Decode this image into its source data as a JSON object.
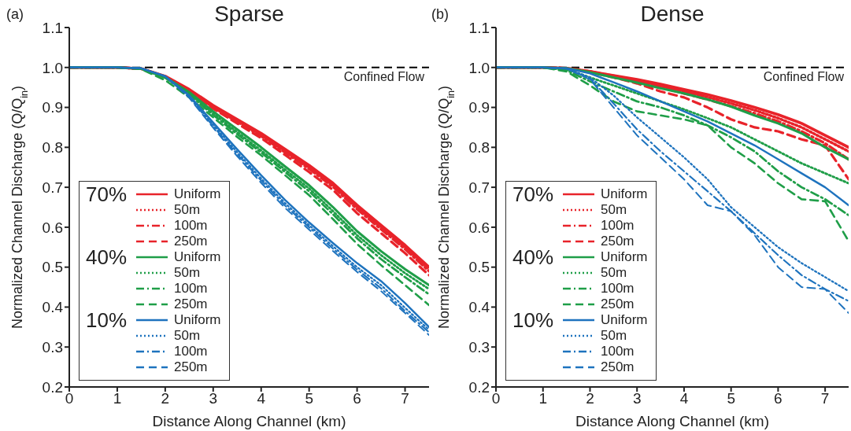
{
  "chart_data": [
    {
      "type": "line",
      "title": "Sparse",
      "xlabel": "Distance Along Channel (km)",
      "ylabel": "Normalized Channel Discharge (Q/Q$_{in}$)",
      "annotations": [
        "(a)",
        "70%",
        "40%",
        "10%"
      ],
      "x": [
        0,
        1,
        1.5,
        2,
        2.5,
        3,
        3.5,
        4,
        4.5,
        5,
        5.5,
        6,
        6.5,
        7,
        7.5
      ],
      "xlim": [
        0,
        7.5
      ],
      "xticks": [
        0,
        1,
        2,
        3,
        4,
        5,
        6,
        7
      ],
      "ylim": [
        0.2,
        1.1
      ],
      "yticks": [
        0.2,
        0.3,
        0.4,
        0.5,
        0.6,
        0.7,
        0.8,
        0.9,
        {
          "value": 1,
          "label": "1.0"
        },
        1.1
      ],
      "ref_lines": [
        {
          "axis": "y",
          "value": 1,
          "label": "Confined Flow",
          "color": "#000000",
          "line_style": "dashed"
        }
      ],
      "legend": "bottom left",
      "marker": "none",
      "series": [
        {
          "name": "Uniform",
          "color": "#e8232a",
          "line_style": "solid",
          "values": [
            1,
            1,
            0.997,
            0.978,
            0.945,
            0.905,
            0.87,
            0.835,
            0.795,
            0.755,
            0.71,
            0.655,
            0.605,
            0.555,
            0.5
          ]
        },
        {
          "name": "50m",
          "color": "#e8232a",
          "line_style": "dotted",
          "values": [
            1,
            1,
            0.997,
            0.977,
            0.943,
            0.902,
            0.866,
            0.831,
            0.79,
            0.75,
            0.705,
            0.65,
            0.6,
            0.55,
            0.495
          ]
        },
        {
          "name": "100m",
          "color": "#e8232a",
          "line_style": "dashdot",
          "values": [
            1,
            1,
            0.997,
            0.977,
            0.942,
            0.9,
            0.864,
            0.828,
            0.787,
            0.746,
            0.701,
            0.645,
            0.595,
            0.545,
            0.49
          ]
        },
        {
          "name": "250m",
          "color": "#e8232a",
          "line_style": "dashed",
          "values": [
            1,
            1,
            0.997,
            0.976,
            0.94,
            0.897,
            0.86,
            0.823,
            0.781,
            0.738,
            0.693,
            0.635,
            0.585,
            0.535,
            0.48
          ]
        },
        {
          "name": "Uniform",
          "color": "#1f9e48",
          "line_style": "solid",
          "values": [
            1,
            1,
            0.997,
            0.976,
            0.938,
            0.89,
            0.845,
            0.8,
            0.752,
            0.705,
            0.65,
            0.59,
            0.54,
            0.495,
            0.455
          ]
        },
        {
          "name": "50m",
          "color": "#1f9e48",
          "line_style": "dotted",
          "values": [
            1,
            1,
            0.997,
            0.975,
            0.935,
            0.885,
            0.838,
            0.792,
            0.744,
            0.697,
            0.64,
            0.58,
            0.53,
            0.485,
            0.445
          ]
        },
        {
          "name": "100m",
          "color": "#1f9e48",
          "line_style": "dashdot",
          "values": [
            1,
            1,
            0.997,
            0.974,
            0.932,
            0.881,
            0.833,
            0.787,
            0.738,
            0.69,
            0.632,
            0.572,
            0.52,
            0.475,
            0.432
          ]
        },
        {
          "name": "250m",
          "color": "#1f9e48",
          "line_style": "dashed",
          "values": [
            1,
            1,
            0.996,
            0.968,
            0.925,
            0.875,
            0.826,
            0.78,
            0.73,
            0.68,
            0.62,
            0.558,
            0.505,
            0.455,
            0.405
          ]
        },
        {
          "name": "Uniform",
          "color": "#1e73be",
          "line_style": "solid",
          "values": [
            1,
            1,
            0.998,
            0.978,
            0.93,
            0.862,
            0.795,
            0.73,
            0.668,
            0.612,
            0.56,
            0.51,
            0.465,
            0.41,
            0.35
          ]
        },
        {
          "name": "50m",
          "color": "#1e73be",
          "line_style": "dotted",
          "values": [
            1,
            1,
            0.998,
            0.978,
            0.928,
            0.857,
            0.788,
            0.722,
            0.66,
            0.605,
            0.552,
            0.5,
            0.455,
            0.398,
            0.343
          ]
        },
        {
          "name": "100m",
          "color": "#1e73be",
          "line_style": "dashdot",
          "values": [
            1,
            1,
            0.998,
            0.978,
            0.926,
            0.853,
            0.783,
            0.717,
            0.654,
            0.6,
            0.546,
            0.494,
            0.447,
            0.39,
            0.337
          ]
        },
        {
          "name": "250m",
          "color": "#1e73be",
          "line_style": "dashed",
          "values": [
            1,
            1,
            0.998,
            0.978,
            0.924,
            0.849,
            0.778,
            0.711,
            0.648,
            0.594,
            0.54,
            0.488,
            0.44,
            0.385,
            0.33
          ]
        }
      ]
    },
    {
      "type": "line",
      "title": "Dense",
      "xlabel": "Distance Along Channel (km)",
      "ylabel": "Normalized Channel Discharge (Q/Q$_{in}$)",
      "annotations": [
        "(b)",
        "70%",
        "40%",
        "10%"
      ],
      "x": [
        0,
        1,
        1.5,
        2,
        2.5,
        3,
        3.5,
        4,
        4.5,
        5,
        5.5,
        6,
        6.5,
        7,
        7.5
      ],
      "xlim": [
        0,
        7.5
      ],
      "xticks": [
        0,
        1,
        2,
        3,
        4,
        5,
        6,
        7
      ],
      "ylim": [
        0.2,
        1.1
      ],
      "yticks": [
        0.2,
        0.3,
        0.4,
        0.5,
        0.6,
        0.7,
        0.8,
        0.9,
        {
          "value": 1,
          "label": "1.0"
        },
        1.1
      ],
      "ref_lines": [
        {
          "axis": "y",
          "value": 1,
          "label": "Confined Flow",
          "color": "#000000",
          "line_style": "dashed"
        }
      ],
      "legend": "bottom left",
      "marker": "none",
      "series": [
        {
          "name": "Uniform",
          "color": "#e8232a",
          "line_style": "solid",
          "values": [
            1,
            1,
            0.998,
            0.99,
            0.98,
            0.97,
            0.958,
            0.945,
            0.932,
            0.917,
            0.9,
            0.882,
            0.86,
            0.83,
            0.8
          ]
        },
        {
          "name": "50m",
          "color": "#e8232a",
          "line_style": "dotted",
          "values": [
            1,
            1,
            0.998,
            0.99,
            0.979,
            0.967,
            0.954,
            0.94,
            0.926,
            0.91,
            0.893,
            0.873,
            0.85,
            0.82,
            0.79
          ]
        },
        {
          "name": "100m",
          "color": "#e8232a",
          "line_style": "dashdot",
          "values": [
            1,
            1,
            0.998,
            0.989,
            0.977,
            0.964,
            0.95,
            0.935,
            0.92,
            0.903,
            0.885,
            0.865,
            0.84,
            0.81,
            0.77
          ]
        },
        {
          "name": "250m",
          "color": "#e8232a",
          "line_style": "dashed",
          "values": [
            1,
            1,
            0.998,
            0.988,
            0.975,
            0.96,
            0.94,
            0.925,
            0.9,
            0.87,
            0.85,
            0.84,
            0.82,
            0.805,
            0.72
          ]
        },
        {
          "name": "Uniform",
          "color": "#1f9e48",
          "line_style": "solid",
          "values": [
            1,
            1,
            0.998,
            0.988,
            0.975,
            0.962,
            0.948,
            0.935,
            0.92,
            0.902,
            0.88,
            0.86,
            0.835,
            0.8,
            0.77
          ]
        },
        {
          "name": "50m",
          "color": "#1f9e48",
          "line_style": "dotted",
          "values": [
            1,
            1,
            0.995,
            0.975,
            0.955,
            0.935,
            0.915,
            0.895,
            0.873,
            0.85,
            0.82,
            0.79,
            0.76,
            0.735,
            0.71
          ]
        },
        {
          "name": "100m",
          "color": "#1f9e48",
          "line_style": "dashdot",
          "values": [
            1,
            1,
            0.993,
            0.965,
            0.94,
            0.915,
            0.9,
            0.88,
            0.855,
            0.825,
            0.79,
            0.74,
            0.7,
            0.67,
            0.63
          ]
        },
        {
          "name": "250m",
          "color": "#1f9e48",
          "line_style": "dashed",
          "values": [
            1,
            1,
            0.99,
            0.955,
            0.915,
            0.89,
            0.88,
            0.87,
            0.855,
            0.8,
            0.76,
            0.71,
            0.67,
            0.665,
            0.565
          ]
        },
        {
          "name": "Uniform",
          "color": "#1e73be",
          "line_style": "solid",
          "values": [
            1,
            1,
            0.998,
            0.985,
            0.963,
            0.94,
            0.915,
            0.89,
            0.865,
            0.835,
            0.805,
            0.77,
            0.735,
            0.7,
            0.655
          ]
        },
        {
          "name": "50m",
          "color": "#1e73be",
          "line_style": "dotted",
          "values": [
            1,
            1,
            0.997,
            0.975,
            0.93,
            0.875,
            0.825,
            0.775,
            0.72,
            0.65,
            0.6,
            0.55,
            0.51,
            0.475,
            0.44
          ]
        },
        {
          "name": "100m",
          "color": "#1e73be",
          "line_style": "dashdot",
          "values": [
            1,
            1,
            0.997,
            0.972,
            0.91,
            0.845,
            0.79,
            0.74,
            0.69,
            0.64,
            0.585,
            0.53,
            0.48,
            0.445,
            0.415
          ]
        },
        {
          "name": "250m",
          "color": "#1e73be",
          "line_style": "dashed",
          "values": [
            1,
            1,
            0.997,
            0.97,
            0.9,
            0.83,
            0.775,
            0.72,
            0.655,
            0.64,
            0.58,
            0.5,
            0.45,
            0.445,
            0.385
          ]
        }
      ]
    }
  ]
}
